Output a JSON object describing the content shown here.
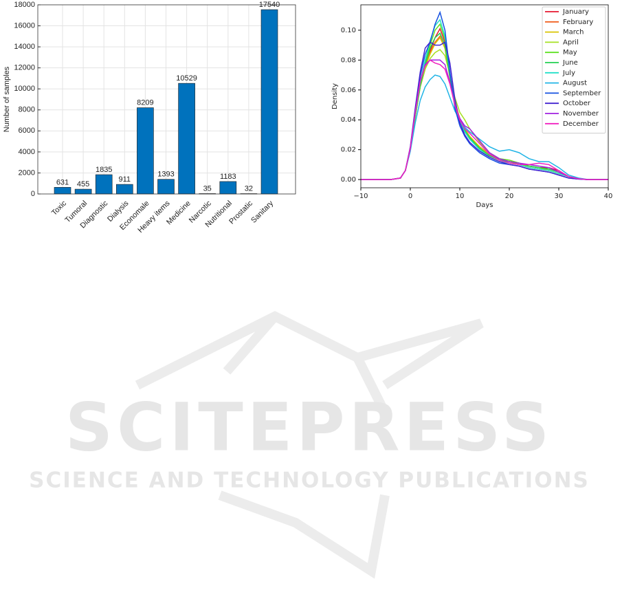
{
  "chart_data": [
    {
      "type": "bar",
      "ylabel": "Number of samples",
      "categories": [
        "Toxic",
        "Tumoral",
        "Diagnostic",
        "Dialysis",
        "Economale",
        "Heavy items",
        "Medicine",
        "Narcotic",
        "Nutritional",
        "Prostatic",
        "Sanitary"
      ],
      "values": [
        631,
        455,
        1835,
        911,
        8209,
        1393,
        10529,
        35,
        1183,
        32,
        17540
      ],
      "color": "#0072bd",
      "ylim": [
        0,
        18000
      ],
      "yticks": [
        0,
        2000,
        4000,
        6000,
        8000,
        10000,
        12000,
        14000,
        16000,
        18000
      ],
      "grid": true
    },
    {
      "type": "line",
      "xlabel": "Days",
      "ylabel": "Density",
      "legend": "upper right",
      "grid": false,
      "xlim": [
        -10,
        40
      ],
      "ylim": [
        -0.0055,
        0.117
      ],
      "xticks": [
        {
          "value": -10,
          "label": "−10"
        },
        0,
        10,
        20,
        30,
        40
      ],
      "yticks": [
        {
          "value": 0,
          "label": "0.00"
        },
        {
          "value": 0.02,
          "label": "0.02"
        },
        {
          "value": 0.04,
          "label": "0.04"
        },
        {
          "value": 0.06,
          "label": "0.06"
        },
        {
          "value": 0.08,
          "label": "0.08"
        },
        {
          "value": 0.1,
          "label": "0.10"
        }
      ],
      "x": [
        -10,
        -4,
        -2,
        -1,
        0,
        1,
        2,
        3,
        4,
        5,
        6,
        7,
        8,
        9,
        10,
        11,
        12,
        14,
        16,
        18,
        20,
        22,
        24,
        26,
        28,
        30,
        32,
        34,
        36,
        40
      ],
      "series": [
        {
          "name": "January",
          "color": "#e6162e",
          "values": [
            0,
            0,
            0.001,
            0.006,
            0.02,
            0.042,
            0.062,
            0.074,
            0.086,
            0.095,
            0.101,
            0.092,
            0.07,
            0.05,
            0.04,
            0.033,
            0.028,
            0.022,
            0.017,
            0.013,
            0.012,
            0.011,
            0.009,
            0.008,
            0.008,
            0.006,
            0.002,
            0.0005,
            0,
            0
          ]
        },
        {
          "name": "February",
          "color": "#f06020",
          "values": [
            0,
            0,
            0.001,
            0.006,
            0.02,
            0.043,
            0.063,
            0.076,
            0.085,
            0.092,
            0.096,
            0.088,
            0.068,
            0.05,
            0.04,
            0.033,
            0.028,
            0.021,
            0.016,
            0.013,
            0.011,
            0.01,
            0.008,
            0.007,
            0.006,
            0.004,
            0.002,
            0.0005,
            0,
            0
          ]
        },
        {
          "name": "March",
          "color": "#d8c400",
          "values": [
            0,
            0,
            0.001,
            0.006,
            0.02,
            0.042,
            0.062,
            0.075,
            0.084,
            0.091,
            0.095,
            0.088,
            0.07,
            0.052,
            0.041,
            0.034,
            0.029,
            0.022,
            0.017,
            0.014,
            0.012,
            0.01,
            0.009,
            0.008,
            0.006,
            0.004,
            0.002,
            0.0005,
            0,
            0
          ]
        },
        {
          "name": "April",
          "color": "#a6e020",
          "values": [
            0,
            0,
            0.001,
            0.006,
            0.02,
            0.042,
            0.062,
            0.074,
            0.081,
            0.085,
            0.087,
            0.083,
            0.07,
            0.055,
            0.045,
            0.04,
            0.034,
            0.025,
            0.018,
            0.014,
            0.013,
            0.011,
            0.009,
            0.008,
            0.007,
            0.005,
            0.002,
            0.0005,
            0,
            0
          ]
        },
        {
          "name": "May",
          "color": "#5ee020",
          "values": [
            0,
            0,
            0.001,
            0.006,
            0.02,
            0.043,
            0.064,
            0.078,
            0.09,
            0.1,
            0.104,
            0.094,
            0.07,
            0.05,
            0.039,
            0.032,
            0.027,
            0.021,
            0.016,
            0.014,
            0.013,
            0.011,
            0.009,
            0.008,
            0.007,
            0.005,
            0.002,
            0.0005,
            0,
            0
          ]
        },
        {
          "name": "June",
          "color": "#20d050",
          "values": [
            0,
            0,
            0.001,
            0.006,
            0.02,
            0.043,
            0.063,
            0.077,
            0.088,
            0.095,
            0.098,
            0.09,
            0.069,
            0.05,
            0.04,
            0.033,
            0.028,
            0.021,
            0.016,
            0.013,
            0.012,
            0.011,
            0.009,
            0.008,
            0.007,
            0.005,
            0.002,
            0.0005,
            0,
            0
          ]
        },
        {
          "name": "July",
          "color": "#20e0c8",
          "values": [
            0,
            0,
            0.001,
            0.006,
            0.021,
            0.044,
            0.065,
            0.08,
            0.093,
            0.103,
            0.107,
            0.096,
            0.071,
            0.05,
            0.039,
            0.032,
            0.027,
            0.02,
            0.015,
            0.012,
            0.011,
            0.01,
            0.008,
            0.007,
            0.006,
            0.004,
            0.002,
            0.0005,
            0,
            0
          ]
        },
        {
          "name": "August",
          "color": "#20b4e6",
          "values": [
            0,
            0,
            0.001,
            0.006,
            0.019,
            0.038,
            0.053,
            0.062,
            0.067,
            0.07,
            0.069,
            0.064,
            0.055,
            0.046,
            0.04,
            0.035,
            0.032,
            0.027,
            0.022,
            0.019,
            0.02,
            0.018,
            0.014,
            0.012,
            0.012,
            0.008,
            0.003,
            0.001,
            0,
            0
          ]
        },
        {
          "name": "September",
          "color": "#1450e0",
          "values": [
            0,
            0,
            0.001,
            0.006,
            0.021,
            0.046,
            0.069,
            0.084,
            0.092,
            0.104,
            0.112,
            0.1,
            0.072,
            0.048,
            0.036,
            0.029,
            0.024,
            0.018,
            0.014,
            0.011,
            0.01,
            0.009,
            0.007,
            0.006,
            0.005,
            0.003,
            0.001,
            0.0003,
            0,
            0
          ]
        },
        {
          "name": "October",
          "color": "#4222d0",
          "values": [
            0,
            0,
            0.001,
            0.006,
            0.022,
            0.048,
            0.072,
            0.088,
            0.092,
            0.09,
            0.09,
            0.092,
            0.078,
            0.054,
            0.038,
            0.03,
            0.025,
            0.019,
            0.015,
            0.012,
            0.01,
            0.009,
            0.007,
            0.006,
            0.005,
            0.003,
            0.001,
            0.0003,
            0,
            0
          ]
        },
        {
          "name": "November",
          "color": "#a020e0",
          "values": [
            0,
            0,
            0.001,
            0.006,
            0.021,
            0.045,
            0.066,
            0.077,
            0.08,
            0.08,
            0.08,
            0.077,
            0.065,
            0.05,
            0.041,
            0.036,
            0.034,
            0.026,
            0.018,
            0.014,
            0.012,
            0.011,
            0.01,
            0.009,
            0.008,
            0.005,
            0.002,
            0.0005,
            0,
            0
          ]
        },
        {
          "name": "December",
          "color": "#f020c0",
          "values": [
            0,
            0,
            0.001,
            0.006,
            0.021,
            0.045,
            0.066,
            0.076,
            0.08,
            0.078,
            0.077,
            0.074,
            0.064,
            0.05,
            0.04,
            0.034,
            0.031,
            0.024,
            0.017,
            0.013,
            0.011,
            0.01,
            0.01,
            0.011,
            0.01,
            0.006,
            0.002,
            0.0005,
            0,
            0
          ]
        }
      ]
    }
  ],
  "watermark": {
    "title": "SCITEPRESS",
    "subtitle": "SCIENCE AND TECHNOLOGY PUBLICATIONS"
  }
}
